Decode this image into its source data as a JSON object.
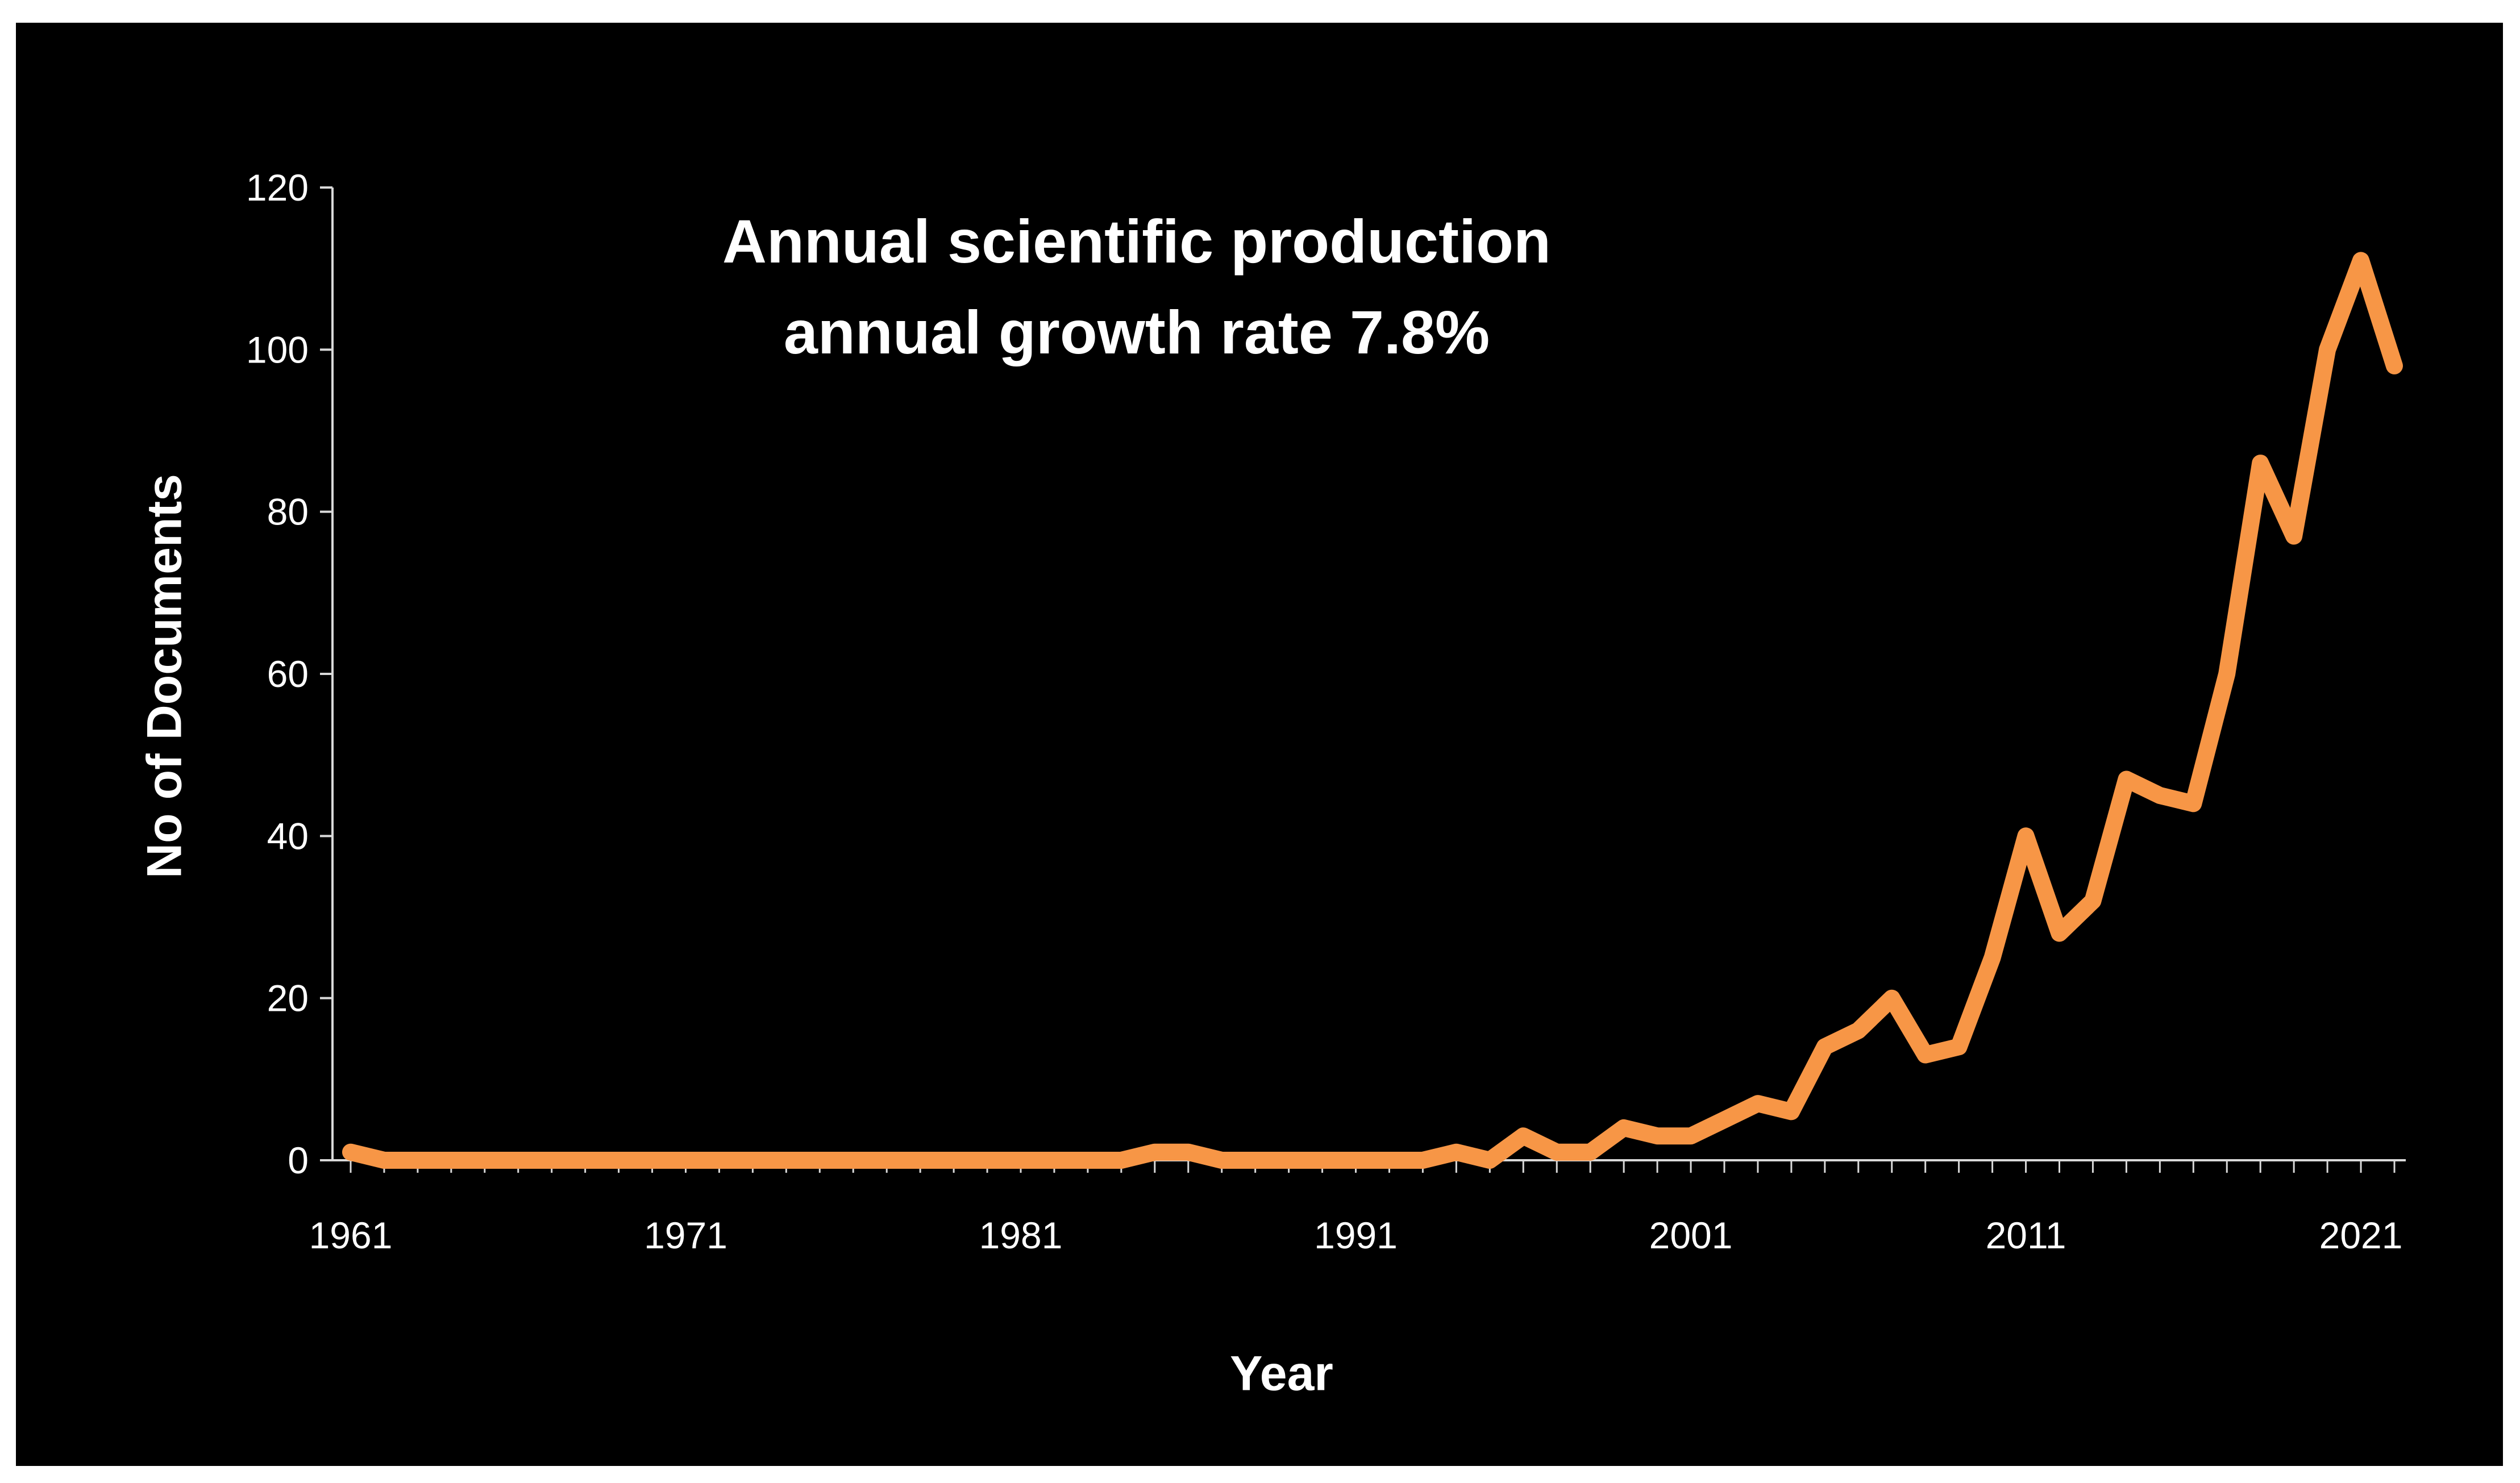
{
  "chart_data": {
    "type": "line",
    "title": [
      "Annual scientific production",
      "annual growth rate 7.8%"
    ],
    "xlabel": "Year",
    "ylabel": "No of Documents",
    "xlim": [
      1961,
      2022
    ],
    "ylim": [
      0,
      120
    ],
    "yticks": [
      0,
      20,
      40,
      60,
      80,
      100,
      120
    ],
    "xtick_labels": [
      "1961",
      "1971",
      "1981",
      "1991",
      "2001",
      "2011",
      "2021"
    ],
    "grid": false,
    "legend": "none",
    "series": [
      {
        "name": "Documents",
        "color": "#F79646",
        "x": [
          1961,
          1962,
          1963,
          1964,
          1965,
          1966,
          1967,
          1968,
          1969,
          1970,
          1971,
          1972,
          1973,
          1974,
          1975,
          1976,
          1977,
          1978,
          1979,
          1980,
          1981,
          1982,
          1983,
          1984,
          1985,
          1986,
          1987,
          1988,
          1989,
          1990,
          1991,
          1992,
          1993,
          1994,
          1995,
          1996,
          1997,
          1998,
          1999,
          2000,
          2001,
          2002,
          2003,
          2004,
          2005,
          2006,
          2007,
          2008,
          2009,
          2010,
          2011,
          2012,
          2013,
          2014,
          2015,
          2016,
          2017,
          2018,
          2019,
          2020,
          2021,
          2022
        ],
        "values": [
          1,
          0,
          0,
          0,
          0,
          0,
          0,
          0,
          0,
          0,
          0,
          0,
          0,
          0,
          0,
          0,
          0,
          0,
          0,
          0,
          0,
          0,
          0,
          0,
          1,
          1,
          0,
          0,
          0,
          0,
          0,
          0,
          0,
          1,
          0,
          3,
          1,
          1,
          4,
          3,
          3,
          5,
          7,
          6,
          14,
          16,
          20,
          13,
          14,
          25,
          40,
          28,
          32,
          47,
          45,
          44,
          60,
          86,
          77,
          100,
          111,
          98
        ]
      }
    ]
  }
}
